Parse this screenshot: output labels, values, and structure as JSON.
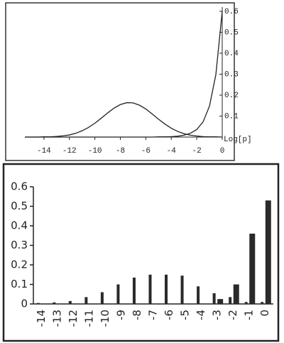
{
  "chart_data": [
    {
      "type": "line",
      "xlabel": "Log[p]",
      "x": [
        -15.5,
        -15,
        -14.5,
        -14,
        -13.5,
        -13,
        -12.5,
        -12,
        -11.5,
        -11,
        -10.5,
        -10,
        -9.5,
        -9,
        -8.5,
        -8,
        -7.5,
        -7,
        -6.5,
        -6,
        -5.5,
        -5,
        -4.5,
        -4,
        -3.5,
        -3,
        -2.5,
        -2,
        -1.5,
        -1,
        -0.5,
        0
      ],
      "series": [
        {
          "color": "#222222",
          "values": [
            0,
            0,
            0,
            0.001,
            0.001,
            0.003,
            0.006,
            0.01,
            0.018,
            0.03,
            0.046,
            0.066,
            0.09,
            0.115,
            0.138,
            0.155,
            0.164,
            0.163,
            0.152,
            0.134,
            0.11,
            0.085,
            0.062,
            0.042,
            0.027,
            0.016,
            0.009,
            0.005,
            0.002,
            0.001,
            0.001,
            0
          ]
        },
        {
          "color": "#222222",
          "values": [
            0,
            0,
            0,
            0,
            0,
            0,
            0,
            0,
            0,
            0,
            0,
            0,
            0,
            0,
            0,
            0,
            0,
            0,
            0,
            0,
            0,
            0.001,
            0.001,
            0.002,
            0.004,
            0.009,
            0.018,
            0.036,
            0.073,
            0.148,
            0.298,
            0.6
          ]
        }
      ],
      "xlim": [
        -15.5,
        0
      ],
      "ylim": [
        0,
        0.62
      ],
      "xticks": [
        -14,
        -12,
        -10,
        -8,
        -6,
        -4,
        -2,
        0
      ],
      "yticks": [
        0.1,
        0.2,
        0.3,
        0.4,
        0.5,
        0.6
      ]
    },
    {
      "type": "bar",
      "categories": [
        "-14",
        "-13",
        "-12",
        "-11",
        "-10",
        "-9",
        "-8",
        "-7",
        "-6",
        "-5",
        "-4",
        "-3",
        "-2",
        "-1",
        "0"
      ],
      "series": [
        {
          "color": "#2a2a2a",
          "values": [
            0.005,
            0.008,
            0.015,
            0.035,
            0.06,
            0.1,
            0.135,
            0.15,
            0.15,
            0.145,
            0.09,
            0.055,
            0.035,
            0.01,
            0.01
          ]
        },
        {
          "color": "#2a2a2a",
          "values": [
            0,
            0,
            0,
            0,
            0,
            0,
            0,
            0,
            0,
            0,
            0,
            0.025,
            0.1,
            0.36,
            0.53
          ]
        }
      ],
      "ylim": [
        0,
        0.6
      ],
      "yticks": [
        0,
        0.1,
        0.2,
        0.3,
        0.4,
        0.5,
        0.6
      ]
    }
  ]
}
